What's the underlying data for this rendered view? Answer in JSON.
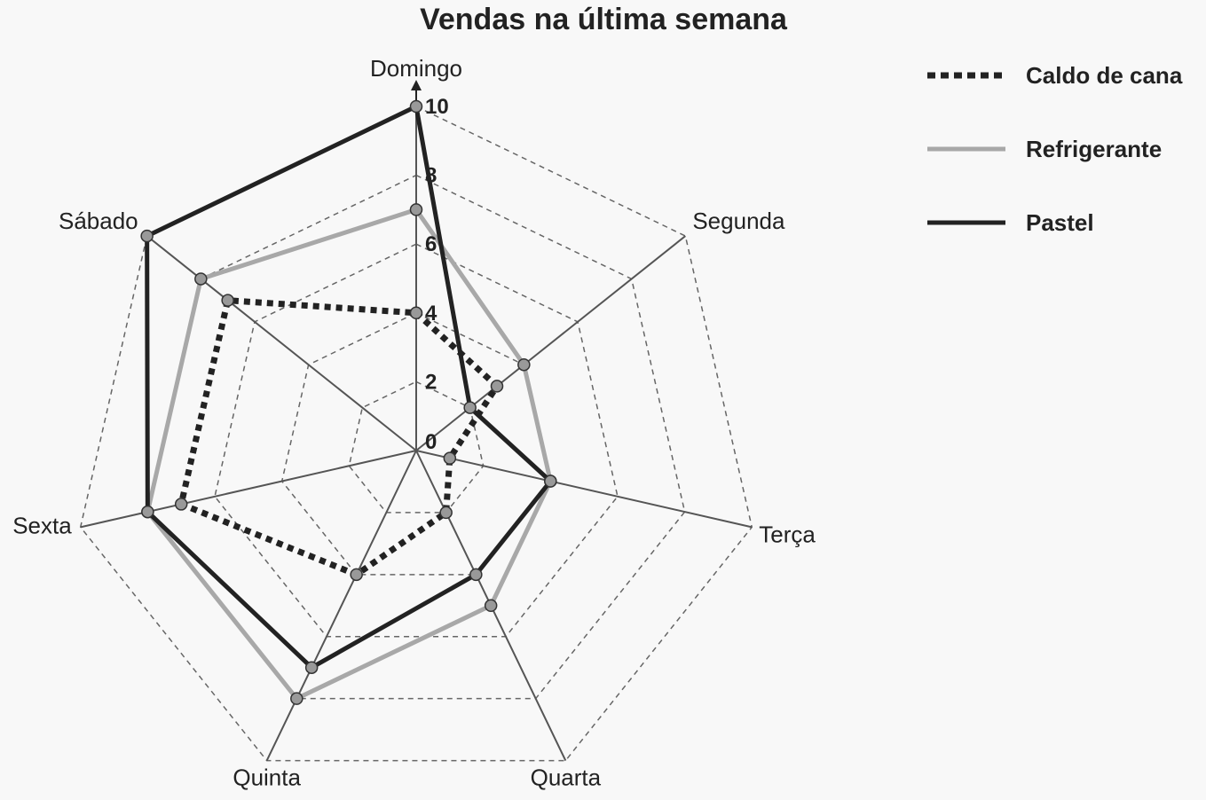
{
  "chart_data": {
    "type": "radar",
    "title": "Vendas na última semana",
    "categories": [
      "Domingo",
      "Segunda",
      "Terça",
      "Quarta",
      "Quinta",
      "Sexta",
      "Sábado"
    ],
    "ticks": [
      "0",
      "2",
      "4",
      "6",
      "8",
      "10"
    ],
    "rlim": [
      0,
      10
    ],
    "grid": true,
    "legend_position": "top-right",
    "series": [
      {
        "name": "Caldo de cana",
        "values": [
          4,
          3,
          1,
          2,
          4,
          7,
          7
        ],
        "color": "#222222",
        "style": "dotted"
      },
      {
        "name": "Refrigerante",
        "values": [
          7,
          4,
          4,
          5,
          8,
          8,
          8
        ],
        "color": "#a8a8a8",
        "style": "solid"
      },
      {
        "name": "Pastel",
        "values": [
          10,
          2,
          4,
          4,
          7,
          8,
          10
        ],
        "color": "#222222",
        "style": "solid"
      }
    ]
  }
}
